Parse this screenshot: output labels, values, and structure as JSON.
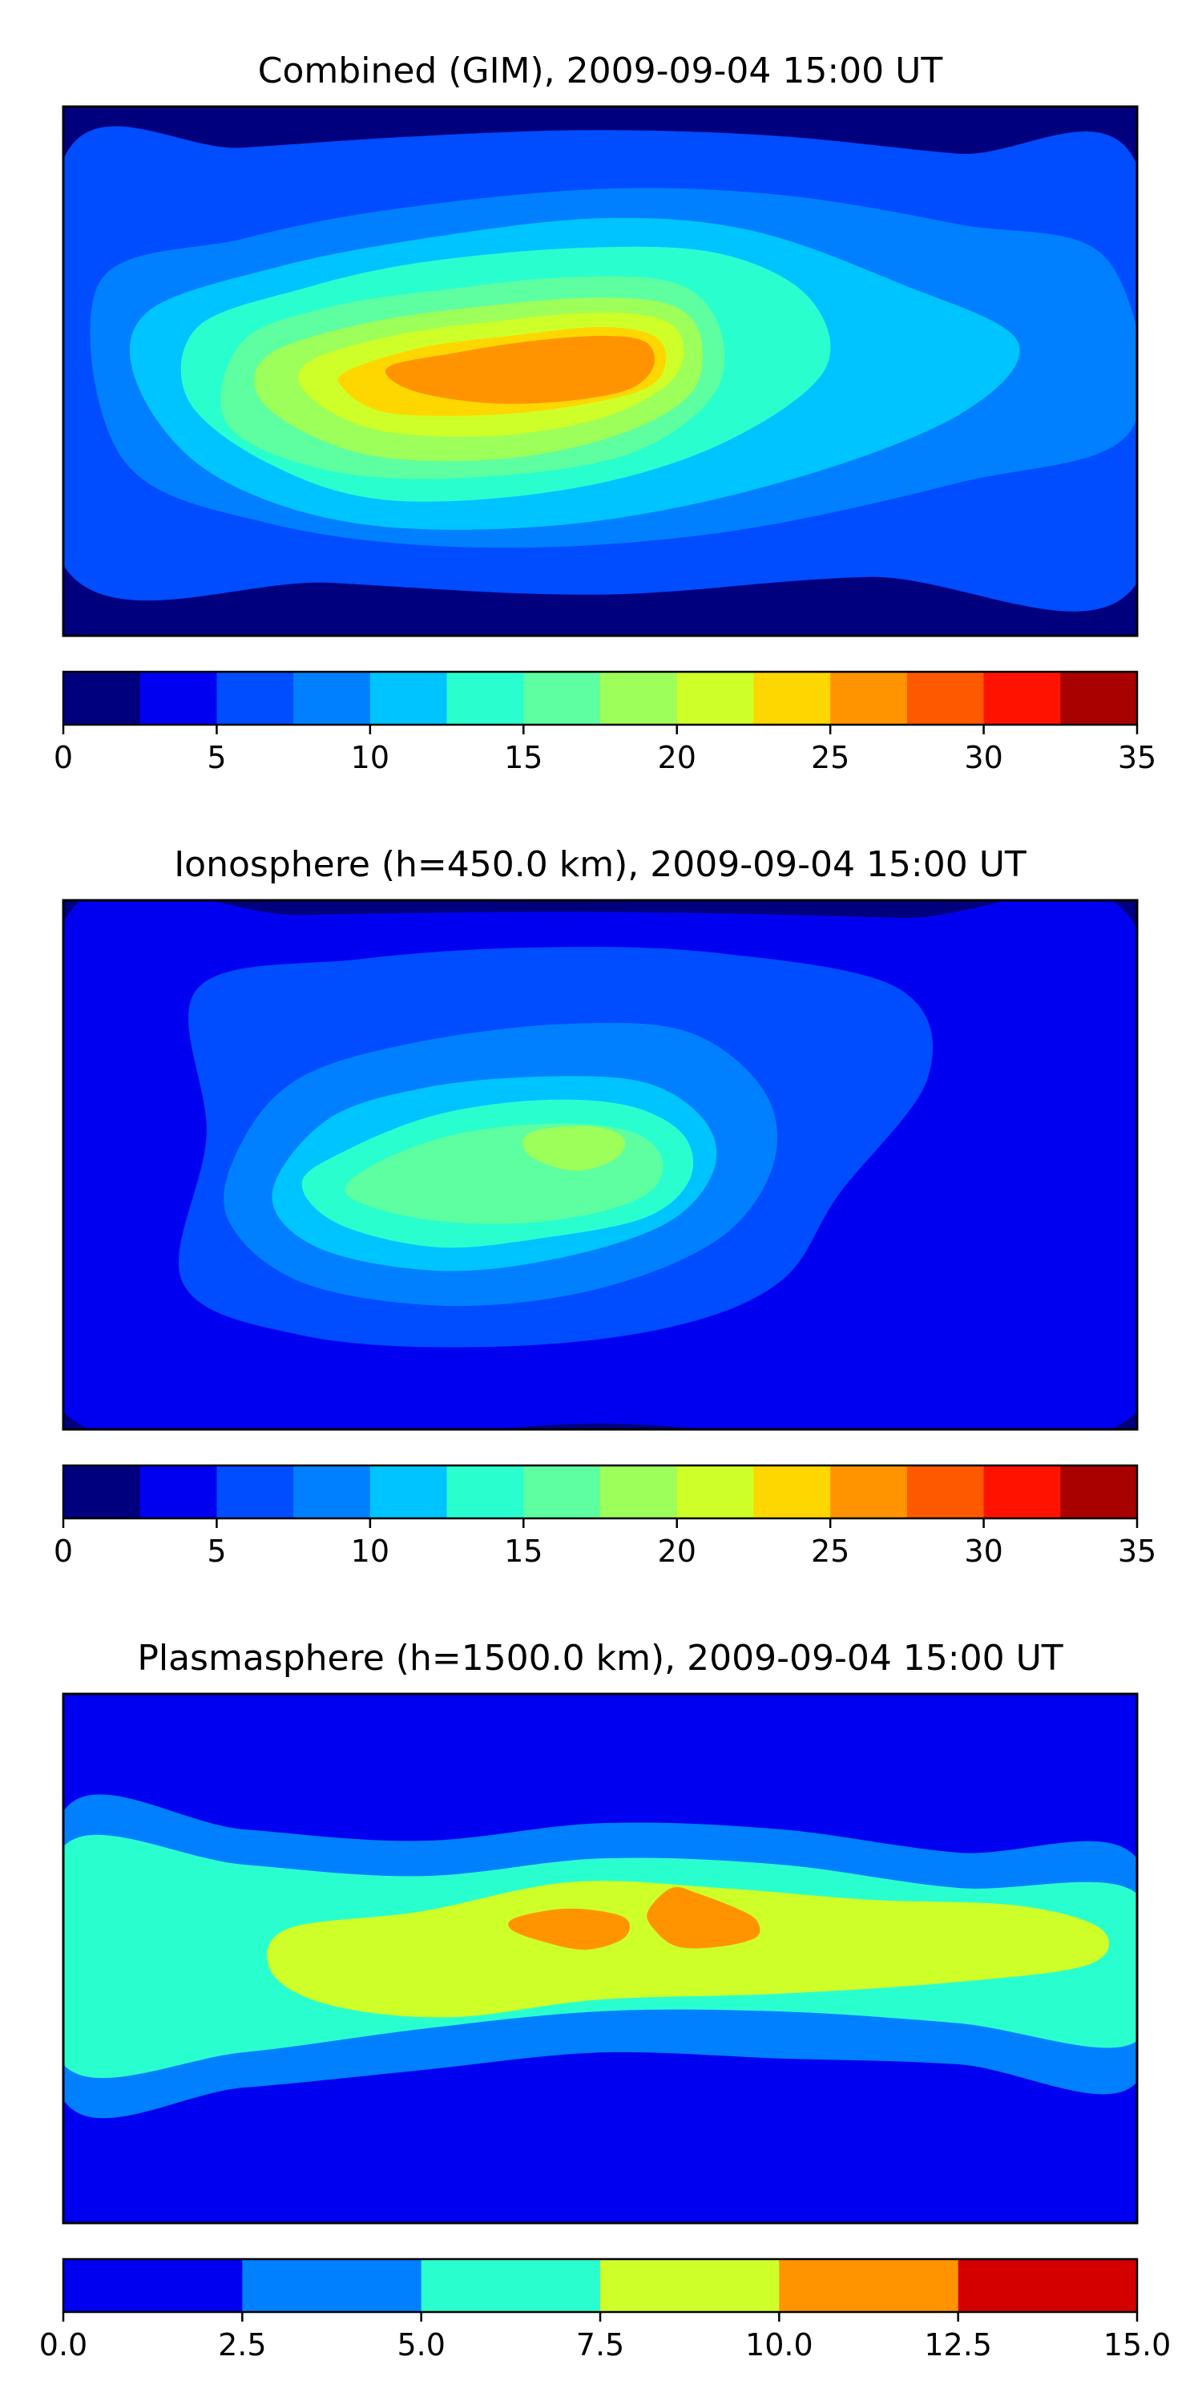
{
  "colormaps": {
    "main": [
      "#00007f",
      "#0000f1",
      "#004cff",
      "#0080ff",
      "#00c4ff",
      "#29ffce",
      "#5effa0",
      "#9dff5a",
      "#ceff29",
      "#ffd700",
      "#ff9400",
      "#ff5900",
      "#ff1300",
      "#a90000"
    ],
    "plasma": [
      "#0000f1",
      "#0080ff",
      "#29ffce",
      "#ceff29",
      "#ff9400",
      "#d40000"
    ]
  },
  "chart_data": [
    {
      "type": "heatmap",
      "title": "Combined (GIM), 2009-09-04 15:00 UT",
      "xlim": [
        -180,
        180
      ],
      "ylim": [
        -90,
        90
      ],
      "colorbar": {
        "levels": [
          0,
          2.5,
          5,
          7.5,
          10,
          12.5,
          15,
          17.5,
          20,
          22.5,
          25,
          27.5,
          30,
          32.5,
          35
        ],
        "tick_labels": [
          "0",
          "5",
          "10",
          "15",
          "20",
          "25",
          "30",
          "35"
        ]
      },
      "contours": [
        {
          "level": 5,
          "points": [
            [
              -180,
              72
            ],
            [
              -120,
              76
            ],
            [
              -60,
              80
            ],
            [
              0,
              82
            ],
            [
              60,
              80
            ],
            [
              120,
              74
            ],
            [
              180,
              70
            ],
            [
              180,
              -72
            ],
            [
              90,
              -70
            ],
            [
              0,
              -76
            ],
            [
              -90,
              -72
            ],
            [
              -180,
              -66
            ]
          ]
        },
        {
          "level": 7.5,
          "points": [
            [
              -168,
              30
            ],
            [
              -120,
              45
            ],
            [
              -70,
              55
            ],
            [
              0,
              62
            ],
            [
              60,
              60
            ],
            [
              120,
              50
            ],
            [
              170,
              38
            ],
            [
              178,
              -20
            ],
            [
              120,
              -38
            ],
            [
              40,
              -55
            ],
            [
              -40,
              -60
            ],
            [
              -110,
              -52
            ],
            [
              -160,
              -30
            ]
          ]
        },
        {
          "level": 10,
          "points": [
            [
              -152,
              20
            ],
            [
              -110,
              35
            ],
            [
              -60,
              45
            ],
            [
              0,
              52
            ],
            [
              50,
              48
            ],
            [
              100,
              30
            ],
            [
              140,
              10
            ],
            [
              120,
              -15
            ],
            [
              60,
              -38
            ],
            [
              -10,
              -52
            ],
            [
              -80,
              -52
            ],
            [
              -130,
              -35
            ],
            [
              -155,
              -5
            ]
          ]
        },
        {
          "level": 12.5,
          "points": [
            [
              -135,
              15
            ],
            [
              -100,
              28
            ],
            [
              -60,
              37
            ],
            [
              -5,
              42
            ],
            [
              40,
              40
            ],
            [
              70,
              25
            ],
            [
              75,
              0
            ],
            [
              40,
              -25
            ],
            [
              -10,
              -40
            ],
            [
              -70,
              -44
            ],
            [
              -110,
              -32
            ],
            [
              -138,
              -10
            ]
          ]
        },
        {
          "level": 15,
          "points": [
            [
              -120,
              10
            ],
            [
              -90,
              22
            ],
            [
              -50,
              28
            ],
            [
              -10,
              32
            ],
            [
              25,
              30
            ],
            [
              40,
              15
            ],
            [
              38,
              -8
            ],
            [
              10,
              -28
            ],
            [
              -40,
              -36
            ],
            [
              -90,
              -34
            ],
            [
              -125,
              -18
            ]
          ]
        },
        {
          "level": 17.5,
          "points": [
            [
              -112,
              5
            ],
            [
              -80,
              16
            ],
            [
              -40,
              22
            ],
            [
              0,
              25
            ],
            [
              25,
              22
            ],
            [
              34,
              10
            ],
            [
              30,
              -8
            ],
            [
              5,
              -22
            ],
            [
              -35,
              -30
            ],
            [
              -80,
              -28
            ],
            [
              -112,
              -12
            ]
          ]
        },
        {
          "level": 20,
          "points": [
            [
              -98,
              3
            ],
            [
              -70,
              12
            ],
            [
              -35,
              17
            ],
            [
              0,
              20
            ],
            [
              22,
              17
            ],
            [
              28,
              7
            ],
            [
              22,
              -5
            ],
            [
              0,
              -16
            ],
            [
              -35,
              -22
            ],
            [
              -75,
              -20
            ],
            [
              -98,
              -8
            ]
          ]
        },
        {
          "level": 22.5,
          "points": [
            [
              -85,
              0
            ],
            [
              -60,
              8
            ],
            [
              -30,
              12
            ],
            [
              0,
              15
            ],
            [
              18,
              12
            ],
            [
              22,
              3
            ],
            [
              15,
              -6
            ],
            [
              -10,
              -12
            ],
            [
              -40,
              -15
            ],
            [
              -72,
              -14
            ],
            [
              -86,
              -6
            ]
          ]
        },
        {
          "level": 25,
          "points": [
            [
              -70,
              2
            ],
            [
              -50,
              6
            ],
            [
              -25,
              10
            ],
            [
              0,
              12
            ],
            [
              15,
              10
            ],
            [
              18,
              2
            ],
            [
              10,
              -6
            ],
            [
              -10,
              -10
            ],
            [
              -35,
              -11
            ],
            [
              -58,
              -8
            ],
            [
              -70,
              -3
            ]
          ]
        }
      ]
    },
    {
      "type": "heatmap",
      "title": "Ionosphere  (h=450.0 km), 2009-09-04 15:00 UT",
      "xlim": [
        -180,
        180
      ],
      "ylim": [
        -90,
        90
      ],
      "colorbar": {
        "levels": [
          0,
          2.5,
          5,
          7.5,
          10,
          12.5,
          15,
          17.5,
          20,
          22.5,
          25,
          27.5,
          30,
          32.5,
          35
        ],
        "tick_labels": [
          "0",
          "5",
          "10",
          "15",
          "20",
          "25",
          "30",
          "35"
        ]
      },
      "contours": [
        {
          "level": 2.5,
          "points": [
            [
              -180,
              82
            ],
            [
              -100,
              85
            ],
            [
              0,
              86
            ],
            [
              100,
              84
            ],
            [
              180,
              80
            ],
            [
              180,
              -84
            ],
            [
              0,
              -88
            ],
            [
              -180,
              -84
            ]
          ]
        },
        {
          "level": 5,
          "points": [
            [
              -135,
              60
            ],
            [
              -80,
              70
            ],
            [
              -20,
              74
            ],
            [
              40,
              72
            ],
            [
              100,
              60
            ],
            [
              110,
              30
            ],
            [
              80,
              -10
            ],
            [
              60,
              -40
            ],
            [
              20,
              -56
            ],
            [
              -40,
              -62
            ],
            [
              -100,
              -58
            ],
            [
              -140,
              -40
            ],
            [
              -132,
              10
            ]
          ]
        },
        {
          "level": 7.5,
          "points": [
            [
              -100,
              30
            ],
            [
              -60,
              42
            ],
            [
              -10,
              48
            ],
            [
              30,
              45
            ],
            [
              55,
              25
            ],
            [
              58,
              0
            ],
            [
              40,
              -25
            ],
            [
              0,
              -42
            ],
            [
              -50,
              -48
            ],
            [
              -100,
              -40
            ],
            [
              -125,
              -18
            ],
            [
              -120,
              8
            ]
          ]
        },
        {
          "level": 10,
          "points": [
            [
              -92,
              15
            ],
            [
              -60,
              26
            ],
            [
              -20,
              30
            ],
            [
              15,
              28
            ],
            [
              35,
              15
            ],
            [
              38,
              -2
            ],
            [
              22,
              -20
            ],
            [
              -15,
              -32
            ],
            [
              -55,
              -36
            ],
            [
              -95,
              -28
            ],
            [
              -110,
              -10
            ]
          ]
        },
        {
          "level": 12.5,
          "points": [
            [
              -85,
              5
            ],
            [
              -55,
              17
            ],
            [
              -20,
              22
            ],
            [
              10,
              20
            ],
            [
              28,
              10
            ],
            [
              30,
              -5
            ],
            [
              15,
              -18
            ],
            [
              -20,
              -25
            ],
            [
              -55,
              -28
            ],
            [
              -88,
              -20
            ],
            [
              -100,
              -6
            ]
          ]
        },
        {
          "level": 15,
          "points": [
            [
              -76,
              0
            ],
            [
              -50,
              10
            ],
            [
              -18,
              14
            ],
            [
              8,
              12
            ],
            [
              20,
              4
            ],
            [
              18,
              -8
            ],
            [
              0,
              -16
            ],
            [
              -30,
              -20
            ],
            [
              -62,
              -18
            ],
            [
              -85,
              -10
            ]
          ]
        },
        {
          "level": 17.5,
          "points": [
            [
              -20,
              12
            ],
            [
              -2,
              13
            ],
            [
              8,
              9
            ],
            [
              5,
              2
            ],
            [
              -8,
              -2
            ],
            [
              -22,
              2
            ],
            [
              -26,
              8
            ]
          ]
        }
      ]
    },
    {
      "type": "heatmap",
      "title": "Plasmasphere (h=1500.0 km), 2009-09-04 15:00 UT",
      "xlim": [
        -180,
        180
      ],
      "ylim": [
        -90,
        90
      ],
      "colorbar": {
        "levels": [
          0,
          2.5,
          5,
          7.5,
          10,
          12.5,
          15
        ],
        "tick_labels": [
          "0.0",
          "2.5",
          "5.0",
          "7.5",
          "10.0",
          "12.5",
          "15.0"
        ]
      },
      "contours": [
        {
          "level": 2.5,
          "points": [
            [
              -180,
              50
            ],
            [
              -120,
              44
            ],
            [
              -60,
              40
            ],
            [
              0,
              46
            ],
            [
              60,
              44
            ],
            [
              120,
              36
            ],
            [
              180,
              34
            ],
            [
              180,
              -42
            ],
            [
              120,
              -36
            ],
            [
              60,
              -34
            ],
            [
              0,
              -32
            ],
            [
              -60,
              -38
            ],
            [
              -120,
              -44
            ],
            [
              -180,
              -48
            ]
          ]
        },
        {
          "level": 5,
          "points": [
            [
              -180,
              38
            ],
            [
              -120,
              32
            ],
            [
              -60,
              28
            ],
            [
              0,
              34
            ],
            [
              60,
              32
            ],
            [
              120,
              24
            ],
            [
              180,
              22
            ],
            [
              180,
              -28
            ],
            [
              120,
              -22
            ],
            [
              60,
              -18
            ],
            [
              0,
              -18
            ],
            [
              -60,
              -24
            ],
            [
              -120,
              -32
            ],
            [
              -180,
              -36
            ]
          ]
        },
        {
          "level": 7.5,
          "points": [
            [
              -105,
              10
            ],
            [
              -60,
              16
            ],
            [
              -10,
              26
            ],
            [
              40,
              24
            ],
            [
              90,
              20
            ],
            [
              140,
              18
            ],
            [
              168,
              10
            ],
            [
              164,
              -2
            ],
            [
              120,
              -8
            ],
            [
              60,
              -12
            ],
            [
              0,
              -14
            ],
            [
              -50,
              -20
            ],
            [
              -90,
              -16
            ],
            [
              -110,
              -5
            ]
          ]
        },
        {
          "level": 10,
          "points": [
            [
              -28,
              14
            ],
            [
              -10,
              17
            ],
            [
              8,
              14
            ],
            [
              8,
              7
            ],
            [
              -5,
              3
            ],
            [
              -20,
              6
            ],
            [
              -30,
              10
            ]
          ]
        },
        {
          "level": 10,
          "points": [
            [
              16,
              16
            ],
            [
              24,
              24
            ],
            [
              33,
              22
            ],
            [
              48,
              16
            ],
            [
              53,
              12
            ],
            [
              52,
              7
            ],
            [
              40,
              4
            ],
            [
              26,
              4
            ],
            [
              18,
              10
            ]
          ]
        }
      ]
    }
  ]
}
